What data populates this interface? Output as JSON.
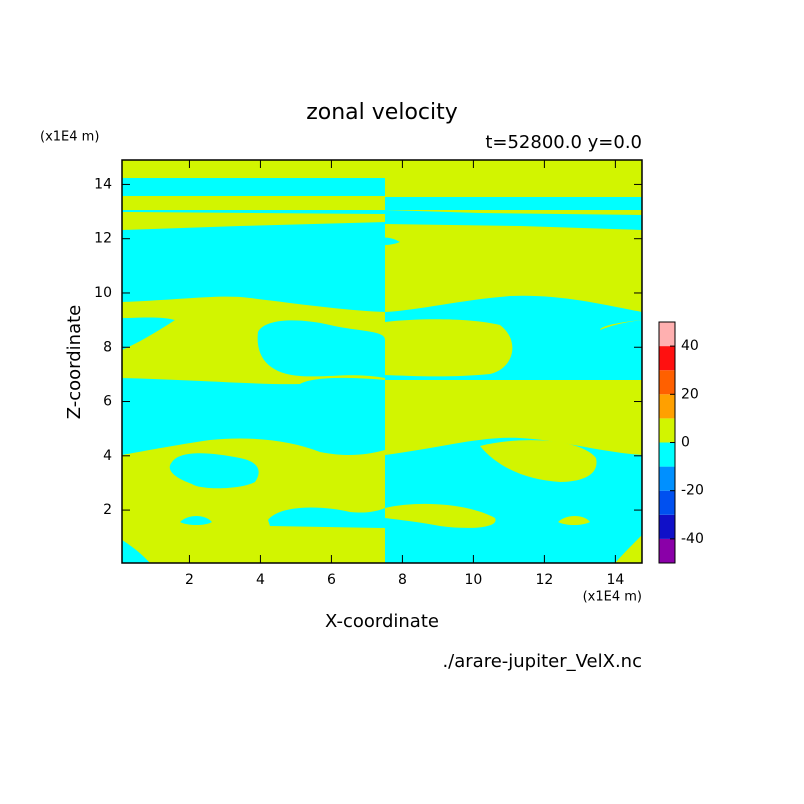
{
  "chart_data": {
    "type": "contour",
    "title": "zonal velocity",
    "subtitle": "t=52800.0 y=0.0",
    "xlabel": "X-coordinate",
    "ylabel": "Z-coordinate",
    "xunit": "(x1E4 m)",
    "yunit": "(x1E4 m)",
    "source": "./arare-jupiter_VelX.nc",
    "xlim": [
      0.1,
      14.75
    ],
    "ylim": [
      0.05,
      14.9
    ],
    "xticks": [
      2,
      4,
      6,
      8,
      10,
      12,
      14
    ],
    "yticks": [
      2,
      4,
      6,
      8,
      10,
      12,
      14
    ],
    "colorbar": {
      "levels": [
        -50,
        -40,
        -30,
        -20,
        -10,
        0,
        10,
        20,
        30,
        40,
        50
      ],
      "colors": [
        "#8a00a8",
        "#1010c8",
        "#0050f0",
        "#0090ff",
        "#00ffff",
        "#d2f500",
        "#ffa000",
        "#ff6000",
        "#ff1010",
        "#ffb0b0"
      ],
      "ticks": [
        -40,
        -20,
        0,
        20,
        40
      ]
    }
  }
}
